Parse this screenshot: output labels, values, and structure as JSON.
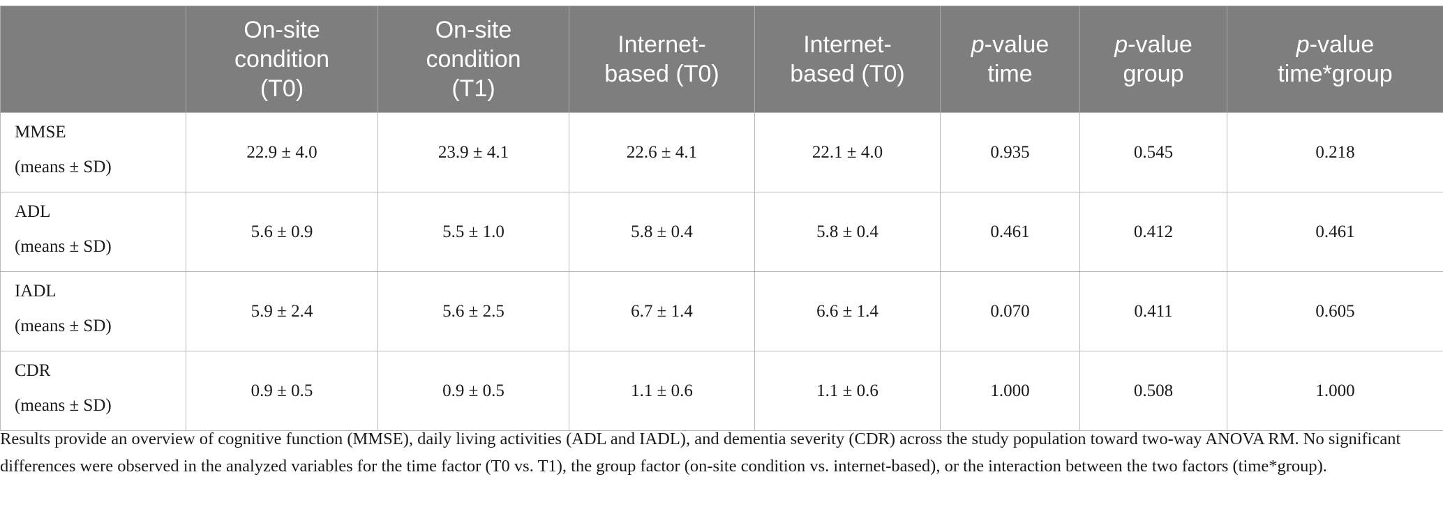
{
  "table": {
    "headers": [
      {
        "lines": [
          ""
        ]
      },
      {
        "lines": [
          "On-site",
          "condition",
          "(T0)"
        ]
      },
      {
        "lines": [
          "On-site",
          "condition",
          "(T1)"
        ]
      },
      {
        "lines": [
          "Internet-",
          "based (T0)"
        ]
      },
      {
        "lines": [
          "Internet-",
          "based (T0)"
        ]
      },
      {
        "italic": "p",
        "rest1": "-value",
        "line2": "time"
      },
      {
        "italic": "p",
        "rest1": "-value",
        "line2": "group"
      },
      {
        "italic": "p",
        "rest1": "-value",
        "line2": "time*group"
      }
    ],
    "rows": [
      {
        "name": "MMSE",
        "sub": "(means ± SD)",
        "cells": [
          "22.9 ± 4.0",
          "23.9 ± 4.1",
          "22.6 ± 4.1",
          "22.1 ± 4.0",
          "0.935",
          "0.545",
          "0.218"
        ]
      },
      {
        "name": "ADL",
        "sub": "(means ± SD)",
        "cells": [
          "5.6 ± 0.9",
          "5.5 ± 1.0",
          "5.8 ± 0.4",
          "5.8 ± 0.4",
          "0.461",
          "0.412",
          "0.461"
        ]
      },
      {
        "name": "IADL",
        "sub": "(means ± SD)",
        "cells": [
          "5.9 ± 2.4",
          "5.6 ± 2.5",
          "6.7 ± 1.4",
          "6.6 ± 1.4",
          "0.070",
          "0.411",
          "0.605"
        ]
      },
      {
        "name": "CDR",
        "sub": "(means ± SD)",
        "cells": [
          "0.9 ± 0.5",
          "0.9 ± 0.5",
          "1.1 ± 0.6",
          "1.1 ± 0.6",
          "1.000",
          "0.508",
          "1.000"
        ]
      }
    ]
  },
  "caption": "Results provide an overview of cognitive function (MMSE), daily living activities (ADL and IADL), and dementia severity (CDR) across the study population toward two-way ANOVA RM. No significant differences were observed in the analyzed variables for the time factor (T0 vs. T1), the group factor (on-site condition vs. internet-based), or the interaction between the two factors (time*group).",
  "colors": {
    "header_bg": "#7d7e7d",
    "header_text": "#ffffff",
    "grid": "#b8b8b8"
  }
}
